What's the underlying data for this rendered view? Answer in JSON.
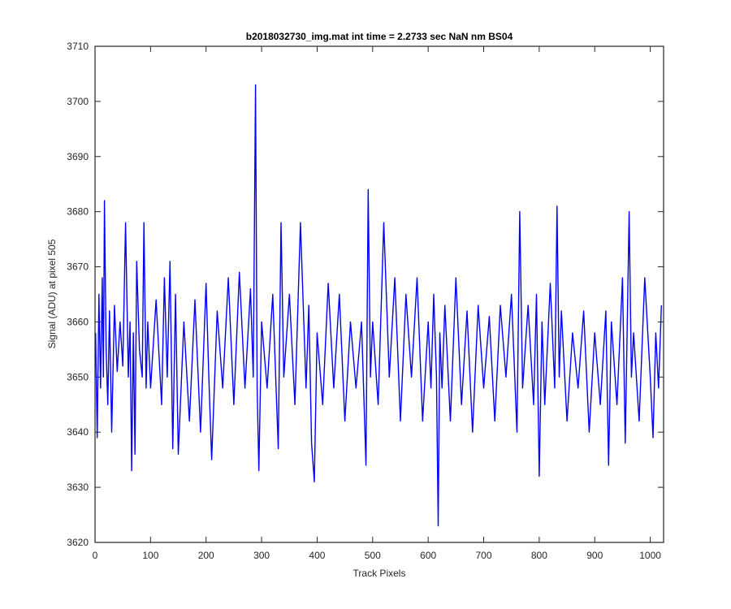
{
  "chart_data": {
    "type": "line",
    "title": "b2018032730_img.mat int time = 2.2733 sec  NaN nm BS04",
    "xlabel": "Track Pixels",
    "ylabel": "Signal (ADU) at pixel 505",
    "xlim": [
      0,
      1024
    ],
    "ylim": [
      3620,
      3710
    ],
    "xticks": [
      0,
      100,
      200,
      300,
      400,
      500,
      600,
      700,
      800,
      900,
      1000
    ],
    "yticks": [
      3620,
      3630,
      3640,
      3650,
      3660,
      3670,
      3680,
      3690,
      3700,
      3710
    ],
    "grid": false,
    "line_color": "#0000ff",
    "series": [
      {
        "points": [
          [
            1,
            3658
          ],
          [
            4,
            3639
          ],
          [
            7,
            3665
          ],
          [
            10,
            3648
          ],
          [
            13,
            3668
          ],
          [
            15,
            3650
          ],
          [
            17,
            3682
          ],
          [
            20,
            3655
          ],
          [
            23,
            3645
          ],
          [
            26,
            3662
          ],
          [
            30,
            3640
          ],
          [
            35,
            3663
          ],
          [
            40,
            3651
          ],
          [
            45,
            3660
          ],
          [
            50,
            3652
          ],
          [
            55,
            3678
          ],
          [
            60,
            3650
          ],
          [
            63,
            3660
          ],
          [
            66,
            3633
          ],
          [
            69,
            3658
          ],
          [
            72,
            3636
          ],
          [
            75,
            3671
          ],
          [
            80,
            3655
          ],
          [
            85,
            3650
          ],
          [
            88,
            3678
          ],
          [
            92,
            3648
          ],
          [
            95,
            3660
          ],
          [
            100,
            3648
          ],
          [
            110,
            3664
          ],
          [
            120,
            3645
          ],
          [
            125,
            3668
          ],
          [
            130,
            3650
          ],
          [
            135,
            3671
          ],
          [
            140,
            3637
          ],
          [
            145,
            3665
          ],
          [
            150,
            3636
          ],
          [
            160,
            3660
          ],
          [
            170,
            3642
          ],
          [
            180,
            3664
          ],
          [
            190,
            3640
          ],
          [
            200,
            3667
          ],
          [
            205,
            3650
          ],
          [
            210,
            3635
          ],
          [
            220,
            3662
          ],
          [
            230,
            3648
          ],
          [
            240,
            3668
          ],
          [
            250,
            3645
          ],
          [
            260,
            3669
          ],
          [
            270,
            3648
          ],
          [
            280,
            3666
          ],
          [
            285,
            3650
          ],
          [
            289,
            3703
          ],
          [
            292,
            3648
          ],
          [
            295,
            3633
          ],
          [
            300,
            3660
          ],
          [
            310,
            3648
          ],
          [
            320,
            3665
          ],
          [
            330,
            3637
          ],
          [
            335,
            3678
          ],
          [
            340,
            3650
          ],
          [
            350,
            3665
          ],
          [
            360,
            3645
          ],
          [
            370,
            3678
          ],
          [
            380,
            3648
          ],
          [
            385,
            3663
          ],
          [
            390,
            3638
          ],
          [
            395,
            3631
          ],
          [
            400,
            3658
          ],
          [
            410,
            3645
          ],
          [
            420,
            3667
          ],
          [
            430,
            3648
          ],
          [
            440,
            3665
          ],
          [
            450,
            3642
          ],
          [
            460,
            3660
          ],
          [
            470,
            3648
          ],
          [
            480,
            3660
          ],
          [
            488,
            3634
          ],
          [
            492,
            3684
          ],
          [
            496,
            3650
          ],
          [
            500,
            3660
          ],
          [
            510,
            3645
          ],
          [
            520,
            3678
          ],
          [
            530,
            3650
          ],
          [
            540,
            3668
          ],
          [
            550,
            3642
          ],
          [
            560,
            3665
          ],
          [
            570,
            3650
          ],
          [
            580,
            3668
          ],
          [
            590,
            3642
          ],
          [
            600,
            3660
          ],
          [
            605,
            3648
          ],
          [
            610,
            3665
          ],
          [
            615,
            3650
          ],
          [
            618,
            3623
          ],
          [
            621,
            3658
          ],
          [
            625,
            3648
          ],
          [
            630,
            3663
          ],
          [
            640,
            3642
          ],
          [
            650,
            3668
          ],
          [
            660,
            3645
          ],
          [
            670,
            3662
          ],
          [
            680,
            3640
          ],
          [
            690,
            3663
          ],
          [
            700,
            3648
          ],
          [
            710,
            3661
          ],
          [
            720,
            3642
          ],
          [
            730,
            3663
          ],
          [
            740,
            3650
          ],
          [
            750,
            3665
          ],
          [
            760,
            3640
          ],
          [
            765,
            3680
          ],
          [
            770,
            3648
          ],
          [
            780,
            3663
          ],
          [
            790,
            3645
          ],
          [
            795,
            3665
          ],
          [
            800,
            3632
          ],
          [
            805,
            3660
          ],
          [
            810,
            3645
          ],
          [
            820,
            3667
          ],
          [
            828,
            3648
          ],
          [
            832,
            3681
          ],
          [
            836,
            3650
          ],
          [
            840,
            3662
          ],
          [
            850,
            3642
          ],
          [
            860,
            3658
          ],
          [
            870,
            3648
          ],
          [
            880,
            3662
          ],
          [
            890,
            3640
          ],
          [
            900,
            3658
          ],
          [
            910,
            3645
          ],
          [
            920,
            3662
          ],
          [
            925,
            3634
          ],
          [
            930,
            3660
          ],
          [
            940,
            3645
          ],
          [
            950,
            3668
          ],
          [
            955,
            3638
          ],
          [
            962,
            3680
          ],
          [
            966,
            3650
          ],
          [
            970,
            3658
          ],
          [
            980,
            3642
          ],
          [
            990,
            3668
          ],
          [
            1000,
            3650
          ],
          [
            1005,
            3639
          ],
          [
            1010,
            3658
          ],
          [
            1015,
            3648
          ],
          [
            1020,
            3663
          ]
        ]
      }
    ]
  }
}
